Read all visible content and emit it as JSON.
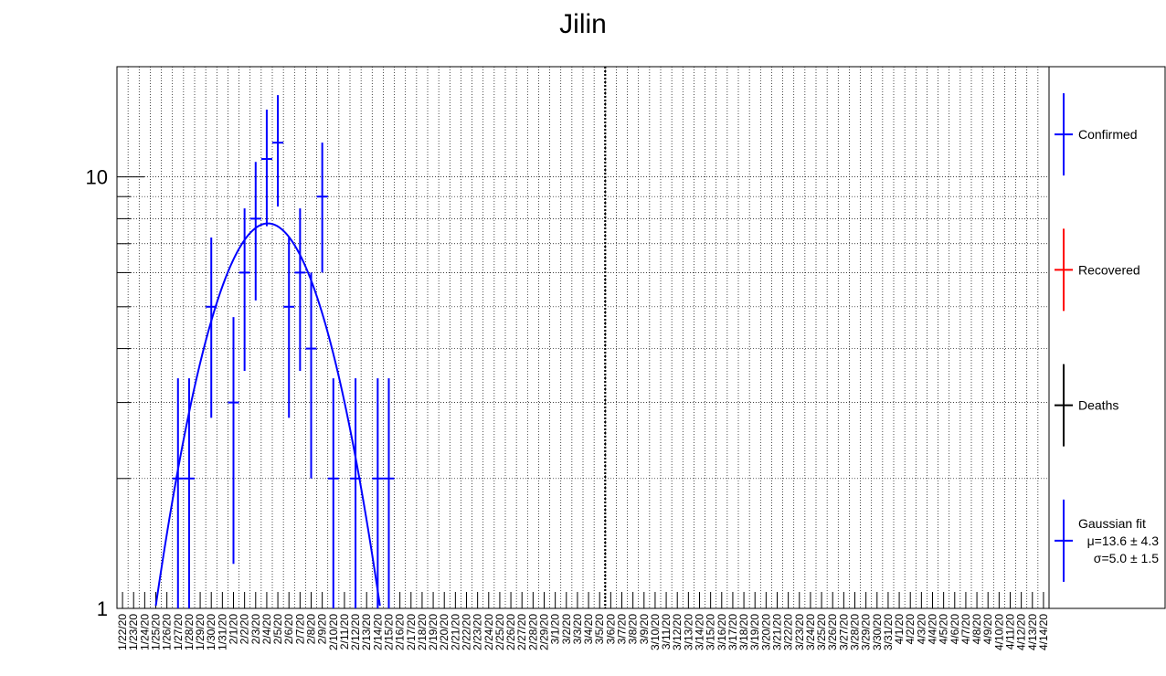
{
  "chart_data": {
    "type": "scatter",
    "title": "Jilin",
    "xlabel": "",
    "ylabel": "",
    "y_scale": "log",
    "ylim": [
      1,
      18
    ],
    "y_ticks": [
      {
        "value": 1,
        "label": "1"
      },
      {
        "value": 10,
        "label": "10"
      }
    ],
    "grid": true,
    "categories": [
      "1/22/20",
      "1/23/20",
      "1/24/20",
      "1/25/20",
      "1/26/20",
      "1/27/20",
      "1/28/20",
      "1/29/20",
      "1/30/20",
      "1/31/20",
      "2/1/20",
      "2/2/20",
      "2/3/20",
      "2/4/20",
      "2/5/20",
      "2/6/20",
      "2/7/20",
      "2/8/20",
      "2/9/20",
      "2/10/20",
      "2/11/20",
      "2/12/20",
      "2/13/20",
      "2/14/20",
      "2/15/20",
      "2/16/20",
      "2/17/20",
      "2/18/20",
      "2/19/20",
      "2/20/20",
      "2/21/20",
      "2/22/20",
      "2/23/20",
      "2/24/20",
      "2/25/20",
      "2/26/20",
      "2/27/20",
      "2/28/20",
      "2/29/20",
      "3/1/20",
      "3/2/20",
      "3/3/20",
      "3/4/20",
      "3/5/20",
      "3/6/20",
      "3/7/20",
      "3/8/20",
      "3/9/20",
      "3/10/20",
      "3/11/20",
      "3/12/20",
      "3/13/20",
      "3/14/20",
      "3/15/20",
      "3/16/20",
      "3/17/20",
      "3/18/20",
      "3/19/20",
      "3/20/20",
      "3/21/20",
      "3/22/20",
      "3/23/20",
      "3/24/20",
      "3/25/20",
      "3/26/20",
      "3/27/20",
      "3/28/20",
      "3/29/20",
      "3/30/20",
      "3/31/20",
      "4/1/20",
      "4/2/20",
      "4/3/20",
      "4/4/20",
      "4/5/20",
      "4/6/20",
      "4/7/20",
      "4/8/20",
      "4/9/20",
      "4/10/20",
      "4/11/20",
      "4/12/20",
      "4/13/20",
      "4/14/20"
    ],
    "vertical_marker": "3/6/20",
    "series": [
      {
        "name": "Confirmed",
        "color": "#0000ff",
        "points": [
          {
            "x": "1/27/20",
            "y": 2
          },
          {
            "x": "1/28/20",
            "y": 2
          },
          {
            "x": "1/30/20",
            "y": 5
          },
          {
            "x": "2/1/20",
            "y": 3
          },
          {
            "x": "2/2/20",
            "y": 6
          },
          {
            "x": "2/3/20",
            "y": 8
          },
          {
            "x": "2/4/20",
            "y": 11
          },
          {
            "x": "2/5/20",
            "y": 12
          },
          {
            "x": "2/6/20",
            "y": 5
          },
          {
            "x": "2/7/20",
            "y": 6
          },
          {
            "x": "2/8/20",
            "y": 4
          },
          {
            "x": "2/9/20",
            "y": 9
          },
          {
            "x": "2/10/20",
            "y": 2
          },
          {
            "x": "2/12/20",
            "y": 2
          },
          {
            "x": "2/14/20",
            "y": 2
          },
          {
            "x": "2/15/20",
            "y": 2
          }
        ]
      },
      {
        "name": "Recovered",
        "color": "#ff0000",
        "points": []
      },
      {
        "name": "Deaths",
        "color": "#000000",
        "points": []
      }
    ],
    "fit": {
      "name": "Gaussian fit",
      "color": "#0000ff",
      "mu": 13.6,
      "sigma": 5.0,
      "peak": 7.8
    },
    "legend": {
      "placement": "right",
      "items": [
        {
          "label": "Confirmed",
          "color": "#0000ff",
          "lines": [
            "Confirmed"
          ]
        },
        {
          "label": "Recovered",
          "color": "#ff0000",
          "lines": [
            "Recovered"
          ]
        },
        {
          "label": "Deaths",
          "color": "#000000",
          "lines": [
            "Deaths"
          ]
        },
        {
          "label": "Gaussian fit",
          "color": "#0000ff",
          "lines": [
            "Gaussian fit",
            "μ=13.6 ± 4.3",
            "σ=5.0 ± 1.5"
          ]
        }
      ]
    }
  }
}
